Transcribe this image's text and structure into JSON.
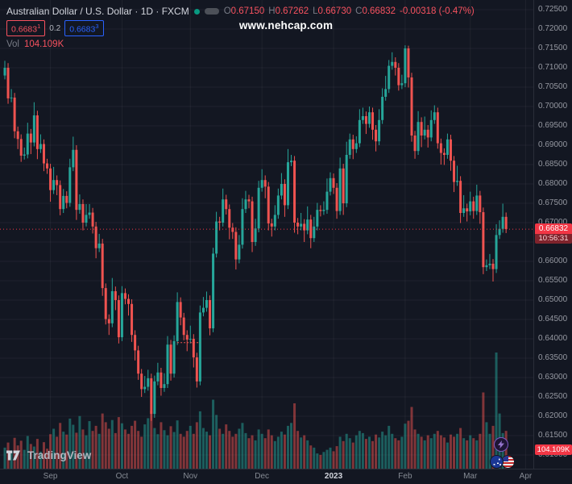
{
  "header": {
    "symbol_title": "Australian Dollar / U.S. Dollar · 1D · FXCM",
    "ohlc": {
      "o_label": "O",
      "o": "0.67150",
      "h_label": "H",
      "h": "0.67262",
      "l_label": "L",
      "l": "0.66730",
      "c_label": "C",
      "c": "0.66832",
      "change": "-0.00318 (-0.47%)"
    },
    "quote": {
      "bid": "0.6683",
      "bid_sup": "1",
      "spread": "0.2",
      "ask": "0.6683",
      "ask_sup": "3"
    },
    "volume": {
      "label": "Vol",
      "value": "104.109K"
    }
  },
  "watermark": "www.nehcap.com",
  "price_axis": {
    "labels": [
      "0.72500",
      "0.72000",
      "0.71500",
      "0.71000",
      "0.70500",
      "0.70000",
      "0.69500",
      "0.69000",
      "0.68500",
      "0.68000",
      "0.67500",
      "0.67000",
      "0.66500",
      "0.66000",
      "0.65500",
      "0.65000",
      "0.64500",
      "0.64000",
      "0.63500",
      "0.63000",
      "0.62500",
      "0.62000",
      "0.61500",
      "0.61000"
    ],
    "last_price": "0.66832",
    "countdown": "10:56:31",
    "volume_badge": "104.109K"
  },
  "time_axis": {
    "ticks": [
      {
        "label": "Sep",
        "index": 14
      },
      {
        "label": "Oct",
        "index": 36
      },
      {
        "label": "Nov",
        "index": 57
      },
      {
        "label": "Dec",
        "index": 79
      },
      {
        "label": "2023",
        "index": 101,
        "year": true
      },
      {
        "label": "Feb",
        "index": 123
      },
      {
        "label": "Mar",
        "index": 143
      },
      {
        "label": "Apr",
        "index": 160
      }
    ]
  },
  "footer": {
    "brand": "TradingView"
  },
  "colors": {
    "up": "#26a69a",
    "down": "#ef5350",
    "accent_red": "#f23645",
    "accent_blue": "#2962ff",
    "bg": "#131722",
    "grid": "rgba(134,139,148,0.10)"
  },
  "chart_data": {
    "type": "candlestick",
    "title": "Australian Dollar / U.S. Dollar",
    "timeframe": "1D",
    "exchange": "FXCM",
    "price_axis_range": {
      "top": 0.725,
      "bottom": 0.61
    },
    "volume_units": "K",
    "last": {
      "open": 0.6715,
      "high": 0.67262,
      "low": 0.6673,
      "close": 0.66832,
      "change": -0.00318,
      "change_pct": -0.47,
      "volume_k": 104.109
    },
    "annotations": [
      {
        "type": "last-price-line",
        "price": 0.66832
      },
      {
        "type": "dashed-segment",
        "price": 0.639,
        "from_index": 53,
        "to_index": 60
      }
    ],
    "candles": [
      [
        0.708,
        0.7118,
        0.707,
        0.71
      ],
      [
        0.71,
        0.7112,
        0.7007,
        0.7021
      ],
      [
        0.7021,
        0.7045,
        0.7011,
        0.7023
      ],
      [
        0.7023,
        0.7035,
        0.6918,
        0.6936
      ],
      [
        0.6936,
        0.6948,
        0.689,
        0.6916
      ],
      [
        0.6916,
        0.6928,
        0.6857,
        0.6873
      ],
      [
        0.6873,
        0.6894,
        0.6863,
        0.6876
      ],
      [
        0.6876,
        0.6958,
        0.6866,
        0.693
      ],
      [
        0.693,
        0.6942,
        0.6877,
        0.6907
      ],
      [
        0.6907,
        0.7011,
        0.6897,
        0.6977
      ],
      [
        0.6977,
        0.6989,
        0.6864,
        0.689
      ],
      [
        0.689,
        0.6928,
        0.688,
        0.6903
      ],
      [
        0.6903,
        0.6915,
        0.6833,
        0.6853
      ],
      [
        0.6853,
        0.6865,
        0.6826,
        0.684
      ],
      [
        0.684,
        0.6852,
        0.6754,
        0.6784
      ],
      [
        0.6784,
        0.6844,
        0.6774,
        0.681
      ],
      [
        0.681,
        0.6822,
        0.6771,
        0.6797
      ],
      [
        0.6797,
        0.6809,
        0.6719,
        0.6735
      ],
      [
        0.6735,
        0.6787,
        0.6725,
        0.6769
      ],
      [
        0.6769,
        0.6781,
        0.6737,
        0.6751
      ],
      [
        0.6751,
        0.6865,
        0.6741,
        0.6843
      ],
      [
        0.6843,
        0.6922,
        0.6833,
        0.6888
      ],
      [
        0.6888,
        0.69,
        0.6707,
        0.6733
      ],
      [
        0.6733,
        0.6773,
        0.6723,
        0.6748
      ],
      [
        0.6748,
        0.676,
        0.668,
        0.67
      ],
      [
        0.67,
        0.6748,
        0.669,
        0.672
      ],
      [
        0.672,
        0.6748,
        0.671,
        0.6726
      ],
      [
        0.6726,
        0.6738,
        0.6672,
        0.669
      ],
      [
        0.669,
        0.6702,
        0.6608,
        0.6634
      ],
      [
        0.6634,
        0.6671,
        0.6624,
        0.6646
      ],
      [
        0.6646,
        0.6658,
        0.6511,
        0.6531
      ],
      [
        0.6531,
        0.6543,
        0.6437,
        0.6451
      ],
      [
        0.6451,
        0.6463,
        0.641,
        0.644
      ],
      [
        0.644,
        0.6557,
        0.643,
        0.6523
      ],
      [
        0.6523,
        0.6535,
        0.6474,
        0.65
      ],
      [
        0.65,
        0.6512,
        0.6388,
        0.6404
      ],
      [
        0.6404,
        0.6536,
        0.6394,
        0.6518
      ],
      [
        0.6518,
        0.653,
        0.6489,
        0.6503
      ],
      [
        0.6503,
        0.6515,
        0.646,
        0.649
      ],
      [
        0.649,
        0.6502,
        0.6392,
        0.641
      ],
      [
        0.641,
        0.6422,
        0.6344,
        0.637
      ],
      [
        0.637,
        0.6382,
        0.6294,
        0.631
      ],
      [
        0.631,
        0.6322,
        0.625,
        0.627
      ],
      [
        0.627,
        0.6304,
        0.626,
        0.6276
      ],
      [
        0.6276,
        0.632,
        0.6266,
        0.6298
      ],
      [
        0.6298,
        0.631,
        0.6188,
        0.6206
      ],
      [
        0.6206,
        0.6305,
        0.6196,
        0.629
      ],
      [
        0.629,
        0.6338,
        0.628,
        0.6313
      ],
      [
        0.6313,
        0.6325,
        0.6253,
        0.6273
      ],
      [
        0.6273,
        0.6311,
        0.6263,
        0.6283
      ],
      [
        0.6283,
        0.6407,
        0.6273,
        0.6385
      ],
      [
        0.6385,
        0.6397,
        0.6292,
        0.631
      ],
      [
        0.631,
        0.6409,
        0.63,
        0.6394
      ],
      [
        0.6394,
        0.652,
        0.6384,
        0.6495
      ],
      [
        0.6495,
        0.6507,
        0.6435,
        0.6455
      ],
      [
        0.6455,
        0.6467,
        0.6396,
        0.641
      ],
      [
        0.641,
        0.6422,
        0.6368,
        0.6398
      ],
      [
        0.6398,
        0.6434,
        0.6388,
        0.64
      ],
      [
        0.64,
        0.6412,
        0.6326,
        0.6352
      ],
      [
        0.6352,
        0.6364,
        0.6274,
        0.629
      ],
      [
        0.629,
        0.6486,
        0.628,
        0.6468
      ],
      [
        0.6468,
        0.6508,
        0.6458,
        0.648
      ],
      [
        0.648,
        0.6522,
        0.647,
        0.65
      ],
      [
        0.65,
        0.6512,
        0.6409,
        0.6427
      ],
      [
        0.6427,
        0.6635,
        0.6417,
        0.662
      ],
      [
        0.662,
        0.6728,
        0.661,
        0.6703
      ],
      [
        0.6703,
        0.6715,
        0.668,
        0.67
      ],
      [
        0.67,
        0.6788,
        0.669,
        0.676
      ],
      [
        0.676,
        0.6772,
        0.6721,
        0.6735
      ],
      [
        0.6735,
        0.6747,
        0.6657,
        0.6687
      ],
      [
        0.6687,
        0.6699,
        0.6658,
        0.6676
      ],
      [
        0.6676,
        0.6688,
        0.6579,
        0.6605
      ],
      [
        0.6605,
        0.6668,
        0.6595,
        0.6643
      ],
      [
        0.6643,
        0.6763,
        0.6633,
        0.6735
      ],
      [
        0.6735,
        0.6782,
        0.6725,
        0.676
      ],
      [
        0.676,
        0.6772,
        0.6737,
        0.6755
      ],
      [
        0.6755,
        0.6767,
        0.6624,
        0.665
      ],
      [
        0.665,
        0.671,
        0.664,
        0.6685
      ],
      [
        0.6685,
        0.6808,
        0.6675,
        0.679
      ],
      [
        0.679,
        0.6838,
        0.678,
        0.681
      ],
      [
        0.681,
        0.6822,
        0.6763,
        0.6793
      ],
      [
        0.6793,
        0.6805,
        0.668,
        0.6698
      ],
      [
        0.6698,
        0.671,
        0.6664,
        0.669
      ],
      [
        0.669,
        0.6745,
        0.668,
        0.672
      ],
      [
        0.672,
        0.6788,
        0.671,
        0.677
      ],
      [
        0.677,
        0.6828,
        0.676,
        0.68
      ],
      [
        0.68,
        0.6812,
        0.6715,
        0.6745
      ],
      [
        0.6745,
        0.689,
        0.6735,
        0.6856
      ],
      [
        0.6856,
        0.6875,
        0.6846,
        0.686
      ],
      [
        0.686,
        0.6872,
        0.6674,
        0.67
      ],
      [
        0.67,
        0.6712,
        0.667,
        0.669
      ],
      [
        0.669,
        0.6725,
        0.668,
        0.6697
      ],
      [
        0.6697,
        0.6709,
        0.665,
        0.668
      ],
      [
        0.668,
        0.6742,
        0.667,
        0.6708
      ],
      [
        0.6708,
        0.672,
        0.6634,
        0.666
      ],
      [
        0.666,
        0.6715,
        0.665,
        0.669
      ],
      [
        0.669,
        0.6751,
        0.668,
        0.6733
      ],
      [
        0.6733,
        0.6745,
        0.6716,
        0.673
      ],
      [
        0.673,
        0.6755,
        0.672,
        0.6733
      ],
      [
        0.6733,
        0.6814,
        0.6723,
        0.678
      ],
      [
        0.678,
        0.683,
        0.677,
        0.6815
      ],
      [
        0.6815,
        0.6827,
        0.6774,
        0.679
      ],
      [
        0.679,
        0.6802,
        0.671,
        0.673
      ],
      [
        0.673,
        0.6868,
        0.672,
        0.684
      ],
      [
        0.684,
        0.6852,
        0.672,
        0.675
      ],
      [
        0.675,
        0.6909,
        0.674,
        0.6875
      ],
      [
        0.6875,
        0.693,
        0.6865,
        0.6915
      ],
      [
        0.6915,
        0.6927,
        0.6864,
        0.689
      ],
      [
        0.689,
        0.6923,
        0.688,
        0.6905
      ],
      [
        0.6905,
        0.6993,
        0.6895,
        0.6965
      ],
      [
        0.6965,
        0.6997,
        0.6955,
        0.6975
      ],
      [
        0.6975,
        0.6987,
        0.6929,
        0.6955
      ],
      [
        0.6955,
        0.7,
        0.6945,
        0.6985
      ],
      [
        0.6985,
        0.6997,
        0.6914,
        0.694
      ],
      [
        0.694,
        0.6952,
        0.6884,
        0.691
      ],
      [
        0.691,
        0.6993,
        0.69,
        0.6965
      ],
      [
        0.6965,
        0.7047,
        0.6955,
        0.7025
      ],
      [
        0.7025,
        0.7079,
        0.7015,
        0.7045
      ],
      [
        0.7045,
        0.712,
        0.7035,
        0.7105
      ],
      [
        0.7105,
        0.714,
        0.7095,
        0.7115
      ],
      [
        0.7115,
        0.7127,
        0.708,
        0.71
      ],
      [
        0.71,
        0.7112,
        0.7041,
        0.7055
      ],
      [
        0.7055,
        0.7082,
        0.7045,
        0.706
      ],
      [
        0.706,
        0.7158,
        0.705,
        0.715
      ],
      [
        0.715,
        0.7157,
        0.7049,
        0.7075
      ],
      [
        0.7075,
        0.7087,
        0.6909,
        0.6925
      ],
      [
        0.6925,
        0.6937,
        0.6865,
        0.6885
      ],
      [
        0.6885,
        0.6988,
        0.6875,
        0.696
      ],
      [
        0.696,
        0.6972,
        0.6895,
        0.6925
      ],
      [
        0.6925,
        0.6974,
        0.6915,
        0.694
      ],
      [
        0.694,
        0.6952,
        0.6894,
        0.692
      ],
      [
        0.692,
        0.699,
        0.691,
        0.6965
      ],
      [
        0.6965,
        0.7003,
        0.6955,
        0.6985
      ],
      [
        0.6985,
        0.6997,
        0.6891,
        0.6905
      ],
      [
        0.6905,
        0.6917,
        0.685,
        0.688
      ],
      [
        0.688,
        0.6892,
        0.6849,
        0.6875
      ],
      [
        0.6875,
        0.693,
        0.6865,
        0.6915
      ],
      [
        0.6915,
        0.6927,
        0.6834,
        0.686
      ],
      [
        0.686,
        0.6872,
        0.6779,
        0.6805
      ],
      [
        0.6805,
        0.6847,
        0.6795,
        0.6808
      ],
      [
        0.6808,
        0.682,
        0.6699,
        0.6725
      ],
      [
        0.6725,
        0.6771,
        0.6715,
        0.6737
      ],
      [
        0.6737,
        0.6749,
        0.6703,
        0.6729
      ],
      [
        0.6729,
        0.678,
        0.6719,
        0.6755
      ],
      [
        0.6755,
        0.6767,
        0.671,
        0.673
      ],
      [
        0.673,
        0.6798,
        0.672,
        0.677
      ],
      [
        0.677,
        0.6782,
        0.6697,
        0.6727
      ],
      [
        0.6727,
        0.6739,
        0.6567,
        0.6585
      ],
      [
        0.6585,
        0.6605,
        0.6575,
        0.659
      ],
      [
        0.659,
        0.6619,
        0.658,
        0.6594
      ],
      [
        0.6594,
        0.6606,
        0.6548,
        0.658
      ],
      [
        0.658,
        0.6696,
        0.657,
        0.6668
      ],
      [
        0.6668,
        0.6706,
        0.6658,
        0.6684
      ],
      [
        0.6684,
        0.6749,
        0.6674,
        0.6715
      ],
      [
        0.6715,
        0.67262,
        0.6673,
        0.66832
      ]
    ],
    "volumes_k": [
      58,
      72,
      49,
      85,
      64,
      77,
      52,
      90,
      68,
      61,
      82,
      47,
      73,
      55,
      95,
      110,
      88,
      126,
      102,
      94,
      138,
      121,
      99,
      145,
      108,
      92,
      131,
      104,
      118,
      96,
      152,
      128,
      110,
      134,
      98,
      142,
      125,
      108,
      96,
      118,
      132,
      104,
      88,
      122,
      139,
      160,
      112,
      95,
      128,
      106,
      92,
      117,
      101,
      133,
      96,
      88,
      104,
      118,
      96,
      128,
      158,
      112,
      102,
      92,
      190,
      148,
      110,
      96,
      122,
      104,
      88,
      96,
      110,
      126,
      98,
      84,
      92,
      78,
      108,
      96,
      84,
      108,
      92,
      76,
      88,
      102,
      94,
      118,
      126,
      180,
      104,
      86,
      92,
      78,
      64,
      58,
      42,
      38,
      46,
      52,
      58,
      48,
      62,
      88,
      76,
      96,
      84,
      72,
      92,
      104,
      98,
      82,
      88,
      76,
      94,
      86,
      102,
      92,
      118,
      96,
      84,
      78,
      88,
      124,
      132,
      170,
      108,
      96,
      88,
      78,
      92,
      84,
      96,
      104,
      92,
      86,
      72,
      94,
      88,
      96,
      112,
      84,
      78,
      92,
      84,
      78,
      96,
      210,
      128,
      96,
      118,
      320,
      152,
      98,
      104.109
    ]
  }
}
